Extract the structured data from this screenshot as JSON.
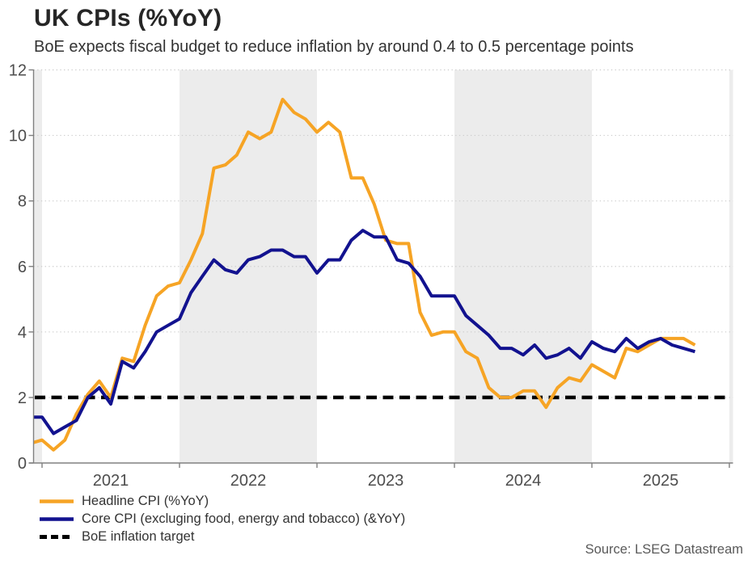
{
  "title": "UK CPIs (%YoY)",
  "subtitle": "BoE expects fiscal budget to reduce inflation by around 0.4 to 0.5 percentage points",
  "source": "Source: LSEG Datastream",
  "colors": {
    "headline": "#F6A425",
    "core": "#12128F",
    "target": "#000000",
    "band": "#ECECEC",
    "grid": "#CCCCCC",
    "axis": "#808080",
    "tick_label": "#4D4D4D",
    "title_text": "#262626",
    "subtitle_text": "#333333",
    "legend_text": "#333333",
    "source_text": "#595959"
  },
  "legend": {
    "items": [
      {
        "label": "Headline CPI (%YoY)",
        "style": "solid",
        "color": "#F6A425"
      },
      {
        "label": "Core CPI (excluging food, energy and tobacco) (&YoY)",
        "style": "solid",
        "color": "#12128F"
      },
      {
        "label": "BoE inflation target",
        "style": "dashed",
        "color": "#000000"
      }
    ]
  },
  "chart_data": {
    "type": "line",
    "title": "UK CPIs (%YoY)",
    "x_unit": "month",
    "x_start": "2020-12",
    "x_end": "2025-10",
    "start_offset_months": -1,
    "x_tick_years": [
      "2021",
      "2022",
      "2023",
      "2024",
      "2025"
    ],
    "y_ticks": [
      0,
      2,
      4,
      6,
      8,
      10,
      12
    ],
    "ylim": [
      0,
      12
    ],
    "grid": "dotted-horizontal",
    "legend_position": "bottom-left",
    "target_value": 2,
    "shaded_month_ranges": [
      [
        -2,
        0
      ],
      [
        12,
        24
      ],
      [
        36,
        48
      ],
      [
        60,
        63
      ]
    ],
    "series": [
      {
        "name": "Headline CPI (%YoY)",
        "color": "#F6A425",
        "values": [
          0.6,
          0.7,
          0.4,
          0.7,
          1.5,
          2.1,
          2.5,
          2.0,
          3.2,
          3.1,
          4.2,
          5.1,
          5.4,
          5.5,
          6.2,
          7.0,
          9.0,
          9.1,
          9.4,
          10.1,
          9.9,
          10.1,
          11.1,
          10.7,
          10.5,
          10.1,
          10.4,
          10.1,
          8.7,
          8.7,
          7.9,
          6.8,
          6.7,
          6.7,
          4.6,
          3.9,
          4.0,
          4.0,
          3.4,
          3.2,
          2.3,
          2.0,
          2.0,
          2.2,
          2.2,
          1.7,
          2.3,
          2.6,
          2.5,
          3.0,
          2.8,
          2.6,
          3.5,
          3.4,
          3.6,
          3.8,
          3.8,
          3.8,
          3.6
        ]
      },
      {
        "name": "Core CPI (excluging food, energy and tobacco) (&YoY)",
        "color": "#12128F",
        "values": [
          1.4,
          1.4,
          0.9,
          1.1,
          1.3,
          2.0,
          2.3,
          1.8,
          3.1,
          2.9,
          3.4,
          4.0,
          4.2,
          4.4,
          5.2,
          5.7,
          6.2,
          5.9,
          5.8,
          6.2,
          6.3,
          6.5,
          6.5,
          6.3,
          6.3,
          5.8,
          6.2,
          6.2,
          6.8,
          7.1,
          6.9,
          6.9,
          6.2,
          6.1,
          5.7,
          5.1,
          5.1,
          5.1,
          4.5,
          4.2,
          3.9,
          3.5,
          3.5,
          3.3,
          3.6,
          3.2,
          3.3,
          3.5,
          3.2,
          3.7,
          3.5,
          3.4,
          3.8,
          3.5,
          3.7,
          3.8,
          3.6,
          3.5,
          3.4
        ]
      }
    ]
  }
}
